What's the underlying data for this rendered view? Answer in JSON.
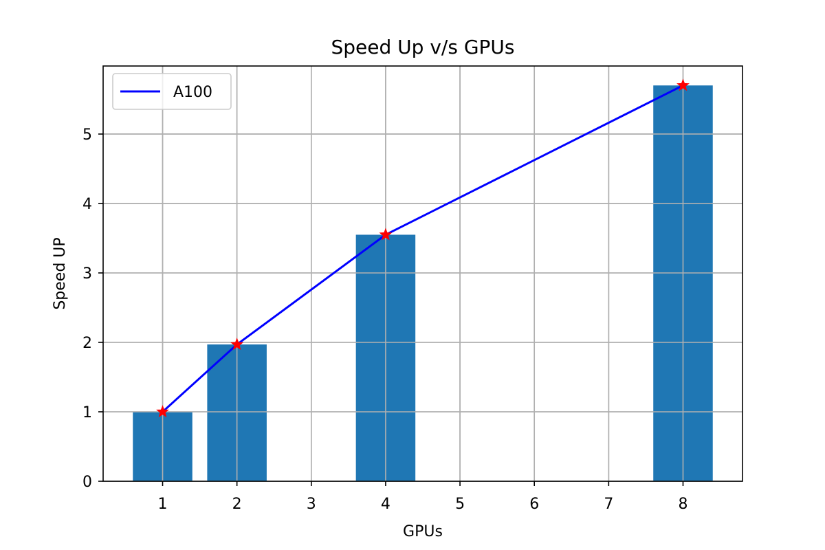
{
  "chart_data": {
    "type": "bar",
    "title": "Speed Up v/s GPUs",
    "xlabel": "GPUs",
    "ylabel": "Speed UP",
    "x_ticks": [
      "1",
      "2",
      "3",
      "4",
      "5",
      "6",
      "7",
      "8"
    ],
    "y_ticks": [
      "0",
      "1",
      "2",
      "3",
      "4",
      "5"
    ],
    "xlim": [
      0.2,
      8.8
    ],
    "ylim": [
      0,
      5.98
    ],
    "grid": true,
    "legend_position": "top-left",
    "bars": {
      "x": [
        1,
        2,
        4,
        8
      ],
      "values": [
        1.0,
        1.97,
        3.55,
        5.7
      ],
      "color": "#1f77b4",
      "width": 0.8
    },
    "series": [
      {
        "name": "A100",
        "type": "line",
        "x": [
          1,
          2,
          4,
          8
        ],
        "values": [
          1.0,
          1.97,
          3.55,
          5.7
        ],
        "color": "#0000ff",
        "marker": "star",
        "marker_color": "#ff0000"
      }
    ]
  }
}
